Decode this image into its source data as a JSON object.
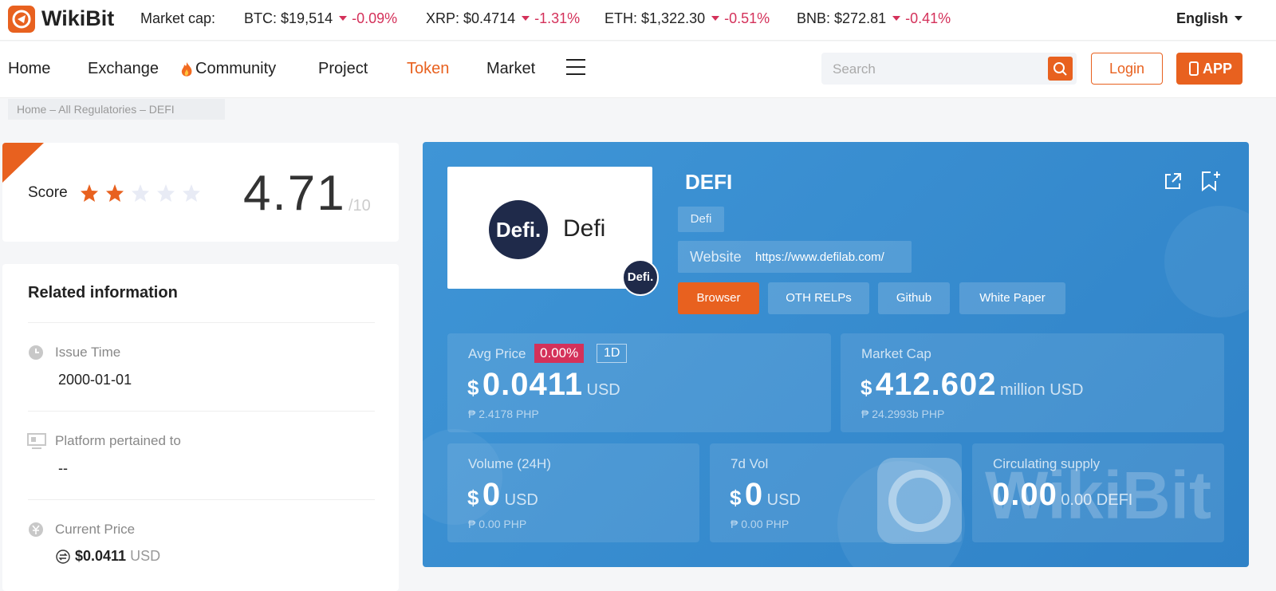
{
  "header": {
    "logo": "WikiBit",
    "market_cap_label": "Market cap:",
    "tickers": [
      {
        "name": "BTC:",
        "price": "$19,514",
        "change": "-0.09%"
      },
      {
        "name": "XRP:",
        "price": "$0.4714",
        "change": "-1.31%"
      },
      {
        "name": "ETH:",
        "price": "$1,322.30",
        "change": "-0.51%"
      },
      {
        "name": "BNB:",
        "price": "$272.81",
        "change": "-0.41%"
      }
    ],
    "language": "English"
  },
  "nav": {
    "items": [
      "Home",
      "Exchange",
      "Community",
      "Project",
      "Token",
      "Market"
    ],
    "search_placeholder": "Search",
    "login": "Login",
    "app": "APP"
  },
  "breadcrumb": [
    "Home",
    "All Regulatories",
    "DEFI"
  ],
  "score": {
    "label": "Score",
    "value": "4.71",
    "max": "/10"
  },
  "related": {
    "title": "Related information",
    "items": [
      {
        "label": "Issue Time",
        "value": "2000-01-01"
      },
      {
        "label": "Platform pertained to",
        "value": "--"
      },
      {
        "label": "Current Price",
        "value": "$0.0411",
        "unit": "USD"
      }
    ]
  },
  "token": {
    "name": "DEFI",
    "logo_badge": "Defi.",
    "logo_text": "Defi",
    "tag": "Defi",
    "website_label": "Website",
    "website": "https://www.defilab.com/",
    "buttons": [
      "Browser",
      "OTH RELPs",
      "Github",
      "White Paper"
    ],
    "stats": [
      {
        "label": "Avg Price",
        "change": "0.00%",
        "period": "1D",
        "currency": "$",
        "value": "0.0411",
        "unit": "USD",
        "sub": "₱ 2.4178 PHP"
      },
      {
        "label": "Market Cap",
        "currency": "$",
        "value": "412.602",
        "unit": "million USD",
        "sub": "₱ 24.2993b PHP"
      },
      {
        "label": "Volume (24H)",
        "currency": "$",
        "value": "0",
        "unit": "USD",
        "sub": "₱ 0.00 PHP"
      },
      {
        "label": "7d Vol",
        "currency": "$",
        "value": "0",
        "unit": "USD",
        "sub": "₱ 0.00 PHP"
      },
      {
        "label": "Circulating supply",
        "value": "0.00",
        "unit": "0.00 DEFI"
      }
    ],
    "watermark": "WikiBit"
  }
}
